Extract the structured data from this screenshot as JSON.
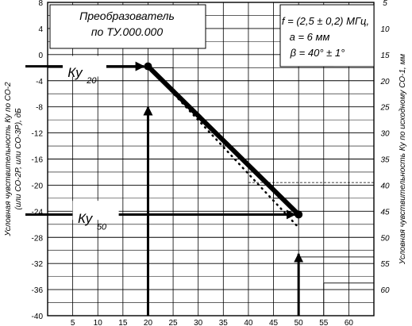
{
  "chart_data": {
    "type": "line",
    "left_axis": {
      "label_line1": "Условная чувствительность Ку по СО-2",
      "label_line2": "(или СО-2Р, или СО-3Р), дБ",
      "ticks": [
        8,
        4,
        0,
        -4,
        -8,
        -12,
        -16,
        -20,
        -24,
        -28,
        -32,
        -36,
        -40
      ],
      "ylim": [
        8,
        -40
      ]
    },
    "right_axis": {
      "label": "Условная чувствительность Ку по исходному СО-1, мм",
      "ticks": [
        5,
        10,
        15,
        20,
        25,
        30,
        35,
        40,
        45,
        50,
        55,
        60
      ],
      "ylim": [
        5,
        60
      ]
    },
    "x_axis": {
      "label_line1": "Номер отражателя в аттестуемом образце СО-1Р,",
      "label_line2": "заводской №000",
      "ticks": [
        5,
        10,
        15,
        20,
        25,
        30,
        35,
        40,
        45,
        50,
        55,
        60
      ],
      "xlim": [
        0,
        65
      ]
    },
    "series": [
      {
        "style": "thick-solid",
        "points": [
          [
            20,
            -1.8
          ],
          [
            50,
            -24.5
          ]
        ]
      },
      {
        "style": "dotted",
        "points": [
          [
            20,
            -1.8
          ],
          [
            50,
            -26.5
          ]
        ]
      }
    ],
    "annotations": {
      "box_title": "Преобразователь",
      "box_subtitle": "по ТУ.000.000",
      "params_f": "f = (2,5 ± 0,2) МГц,",
      "params_a": "a = 6 мм",
      "params_beta": "β = 40° ± 1°",
      "ku20_main": "Ку",
      "ku20_sub": "20",
      "ku50_main": "Ку",
      "ku50_sub": "50",
      "ku_left_sup": "II",
      "ku_right_sup": "I"
    }
  }
}
